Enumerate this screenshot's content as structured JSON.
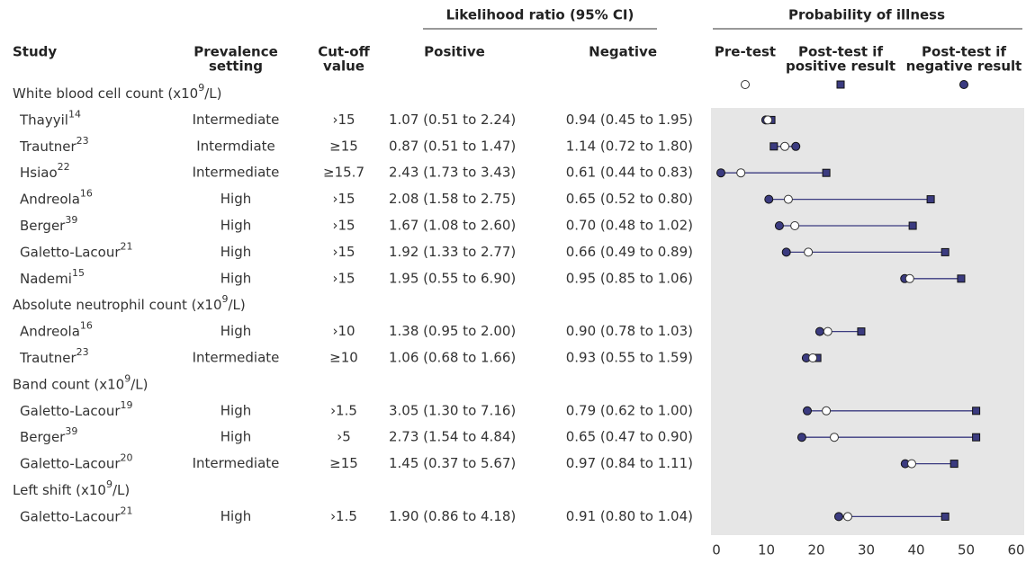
{
  "chart_data": {
    "type": "probability-plot",
    "headers": {
      "study": "Study",
      "prevalence": [
        "Prevalence",
        "setting"
      ],
      "cutoff": [
        "Cut-off",
        "value"
      ],
      "likelihood": "Likelihood ratio (95% CI)",
      "positive": "Positive",
      "negative": "Negative",
      "probability": "Probability of illness"
    },
    "legend": {
      "pre": [
        "Pre-test"
      ],
      "pos": [
        "Post-test if",
        "positive result"
      ],
      "neg": [
        "Post-test if",
        "negative result"
      ]
    },
    "color": "#3b3b80",
    "xlim": [
      0,
      60
    ],
    "xticks": [
      0,
      10,
      20,
      30,
      40,
      50,
      60
    ],
    "groups": [
      {
        "label": "White blood cell count (x10",
        "label_sup": "9",
        "label_end": "/L)",
        "rows": [
          {
            "study": "Thayyil",
            "ref": "14",
            "prevalence": "Intermediate",
            "cutoff": "›15",
            "lr_pos": "1.07 (0.51 to 2.24)",
            "lr_neg": "0.94 (0.45 to 1.95)",
            "pre": 10.3,
            "pos": 11,
            "neg": 9.9
          },
          {
            "study": "Trautner",
            "ref": "23",
            "prevalence": "Intermdiate",
            "cutoff": "≥15",
            "lr_pos": "0.87 (0.51 to 1.47)",
            "lr_neg": "1.14 (0.72 to 1.80)",
            "pre": 13.7,
            "pos": 11.5,
            "neg": 15.9
          },
          {
            "study": "Hsiao",
            "ref": "22",
            "prevalence": "Intermediate",
            "cutoff": "≥15.7",
            "lr_pos": "2.43 (1.73 to 3.43)",
            "lr_neg": "0.61 (0.44 to 0.83)",
            "pre": 4.9,
            "pos": 22,
            "neg": 0.9
          },
          {
            "study": "Andreola",
            "ref": "16",
            "prevalence": "High",
            "cutoff": "›15",
            "lr_pos": "2.08 (1.58 to 2.75)",
            "lr_neg": "0.65 (0.52 to 0.80)",
            "pre": 14.4,
            "pos": 42.9,
            "neg": 10.5
          },
          {
            "study": "Berger",
            "ref": "39",
            "prevalence": "High",
            "cutoff": "›15",
            "lr_pos": "1.67 (1.08 to 2.60)",
            "lr_neg": "0.70 (0.48 to 1.02)",
            "pre": 15.7,
            "pos": 39.3,
            "neg": 12.6
          },
          {
            "study": "Galetto-Lacour",
            "ref": "21",
            "prevalence": "High",
            "cutoff": "›15",
            "lr_pos": "1.92 (1.33 to 2.77)",
            "lr_neg": "0.66 (0.49 to 0.89)",
            "pre": 18.4,
            "pos": 45.8,
            "neg": 14
          },
          {
            "study": "Nademi",
            "ref": "15",
            "prevalence": "High",
            "cutoff": "›15",
            "lr_pos": "1.95 (0.55 to 6.90)",
            "lr_neg": "0.95 (0.85 to 1.06)",
            "pre": 38.7,
            "pos": 49,
            "neg": 37.7
          }
        ]
      },
      {
        "label": "Absolute neutrophil count (x10",
        "label_sup": "9",
        "label_end": "/L)",
        "rows": [
          {
            "study": "Andreola",
            "ref": "16",
            "prevalence": "High",
            "cutoff": "›10",
            "lr_pos": "1.38 (0.95 to 2.00)",
            "lr_neg": "0.90 (0.78 to 1.03)",
            "pre": 22.3,
            "pos": 29,
            "neg": 20.7
          },
          {
            "study": "Trautner",
            "ref": "23",
            "prevalence": "Intermediate",
            "cutoff": "≥10",
            "lr_pos": "1.06 (0.68 to 1.66)",
            "lr_neg": "0.93 (0.55 to 1.59)",
            "pre": 19.3,
            "pos": 20.2,
            "neg": 18
          }
        ]
      },
      {
        "label": "Band count (x10",
        "label_sup": "9",
        "label_end": "/L)",
        "rows": [
          {
            "study": "Galetto-Lacour",
            "ref": "19",
            "prevalence": "High",
            "cutoff": "›1.5",
            "lr_pos": "3.05 (1.30 to 7.16)",
            "lr_neg": "0.79 (0.62 to 1.00)",
            "pre": 22,
            "pos": 52,
            "neg": 18.2
          },
          {
            "study": "Berger",
            "ref": "39",
            "prevalence": "High",
            "cutoff": "›5",
            "lr_pos": "2.73 (1.54 to 4.84)",
            "lr_neg": "0.65 (0.47 to 0.90)",
            "pre": 23.6,
            "pos": 52,
            "neg": 17.1
          },
          {
            "study": "Galetto-Lacour",
            "ref": "20",
            "prevalence": "Intermediate",
            "cutoff": "≥15",
            "lr_pos": "1.45 (0.37 to 5.67)",
            "lr_neg": "0.97 (0.84 to 1.11)",
            "pre": 39.1,
            "pos": 47.6,
            "neg": 37.8
          }
        ]
      },
      {
        "label": "Left shift (x10",
        "label_sup": "9",
        "label_end": "/L)",
        "rows": [
          {
            "study": "Galetto-Lacour",
            "ref": "21",
            "prevalence": "High",
            "cutoff": "›1.5",
            "lr_pos": "1.90 (0.86 to 4.18)",
            "lr_neg": "0.91 (0.80 to 1.04)",
            "pre": 26.3,
            "pos": 45.8,
            "neg": 24.5
          }
        ]
      }
    ]
  }
}
